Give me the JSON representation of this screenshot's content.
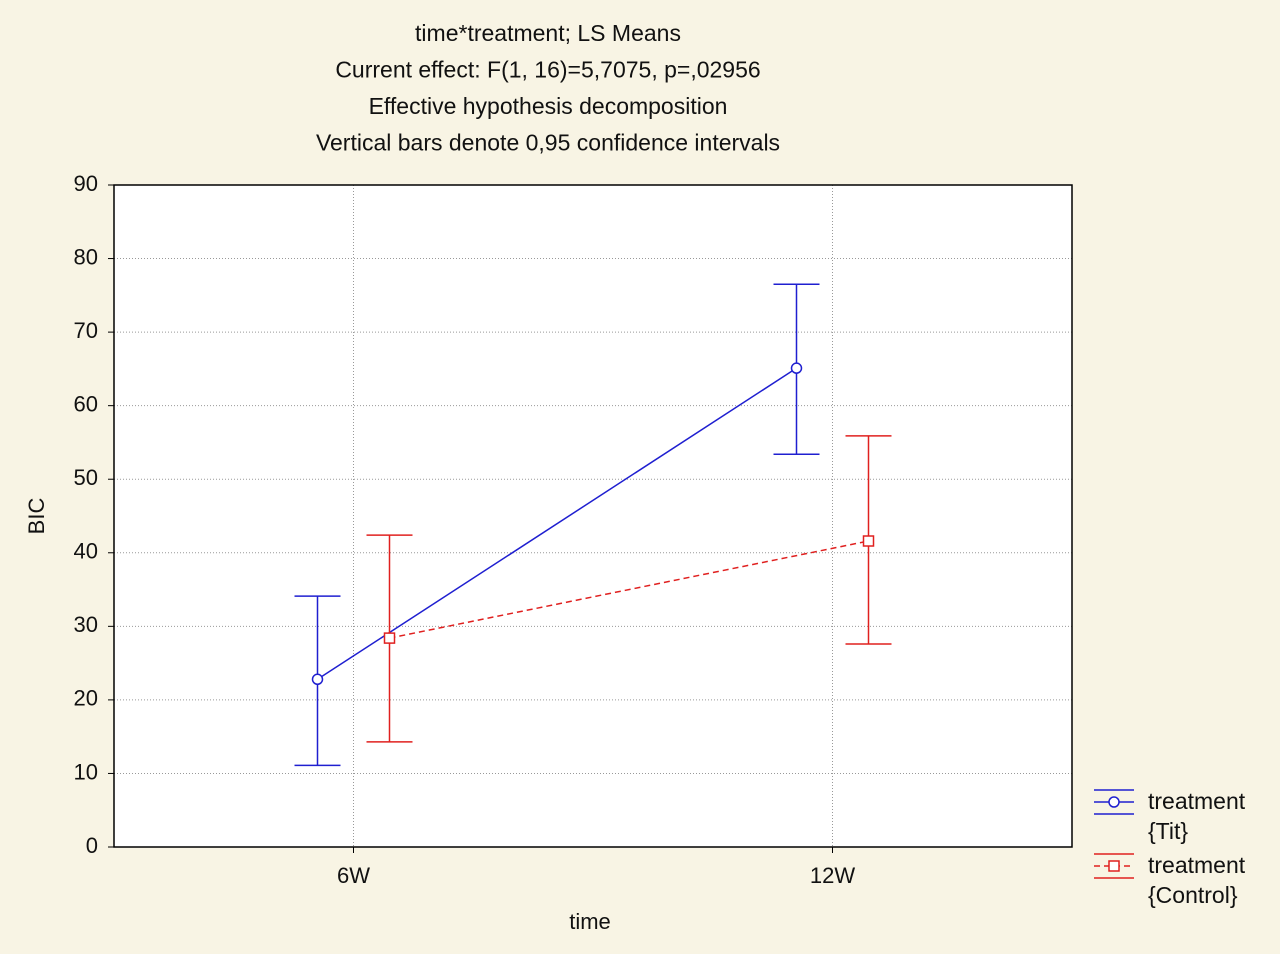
{
  "chart_data": {
    "type": "line",
    "title_lines": [
      "time*treatment; LS Means",
      "Current effect: F(1, 16)=5,7075, p=,02956",
      "Effective hypothesis decomposition",
      "Vertical bars denote 0,95 confidence intervals"
    ],
    "x_label": "time",
    "y_label": "BIC",
    "categories": [
      "6W",
      "12W"
    ],
    "series": [
      {
        "name": "treatment {Tit}",
        "color": "#1f1fd0",
        "marker": "circle",
        "linestyle": "solid",
        "values": [
          22.8,
          65.1
        ],
        "ci_lower": [
          11.1,
          53.4
        ],
        "ci_upper": [
          34.1,
          76.5
        ]
      },
      {
        "name": "treatment {Control}",
        "color": "#e0201f",
        "marker": "square",
        "linestyle": "dashed",
        "values": [
          28.4,
          41.6
        ],
        "ci_lower": [
          14.3,
          27.6
        ],
        "ci_upper": [
          42.4,
          55.9
        ]
      }
    ],
    "ylim": [
      0,
      90
    ],
    "yticks": [
      0,
      10,
      20,
      30,
      40,
      50,
      60,
      70,
      80,
      90
    ],
    "grid": true,
    "legend_position": "right"
  }
}
